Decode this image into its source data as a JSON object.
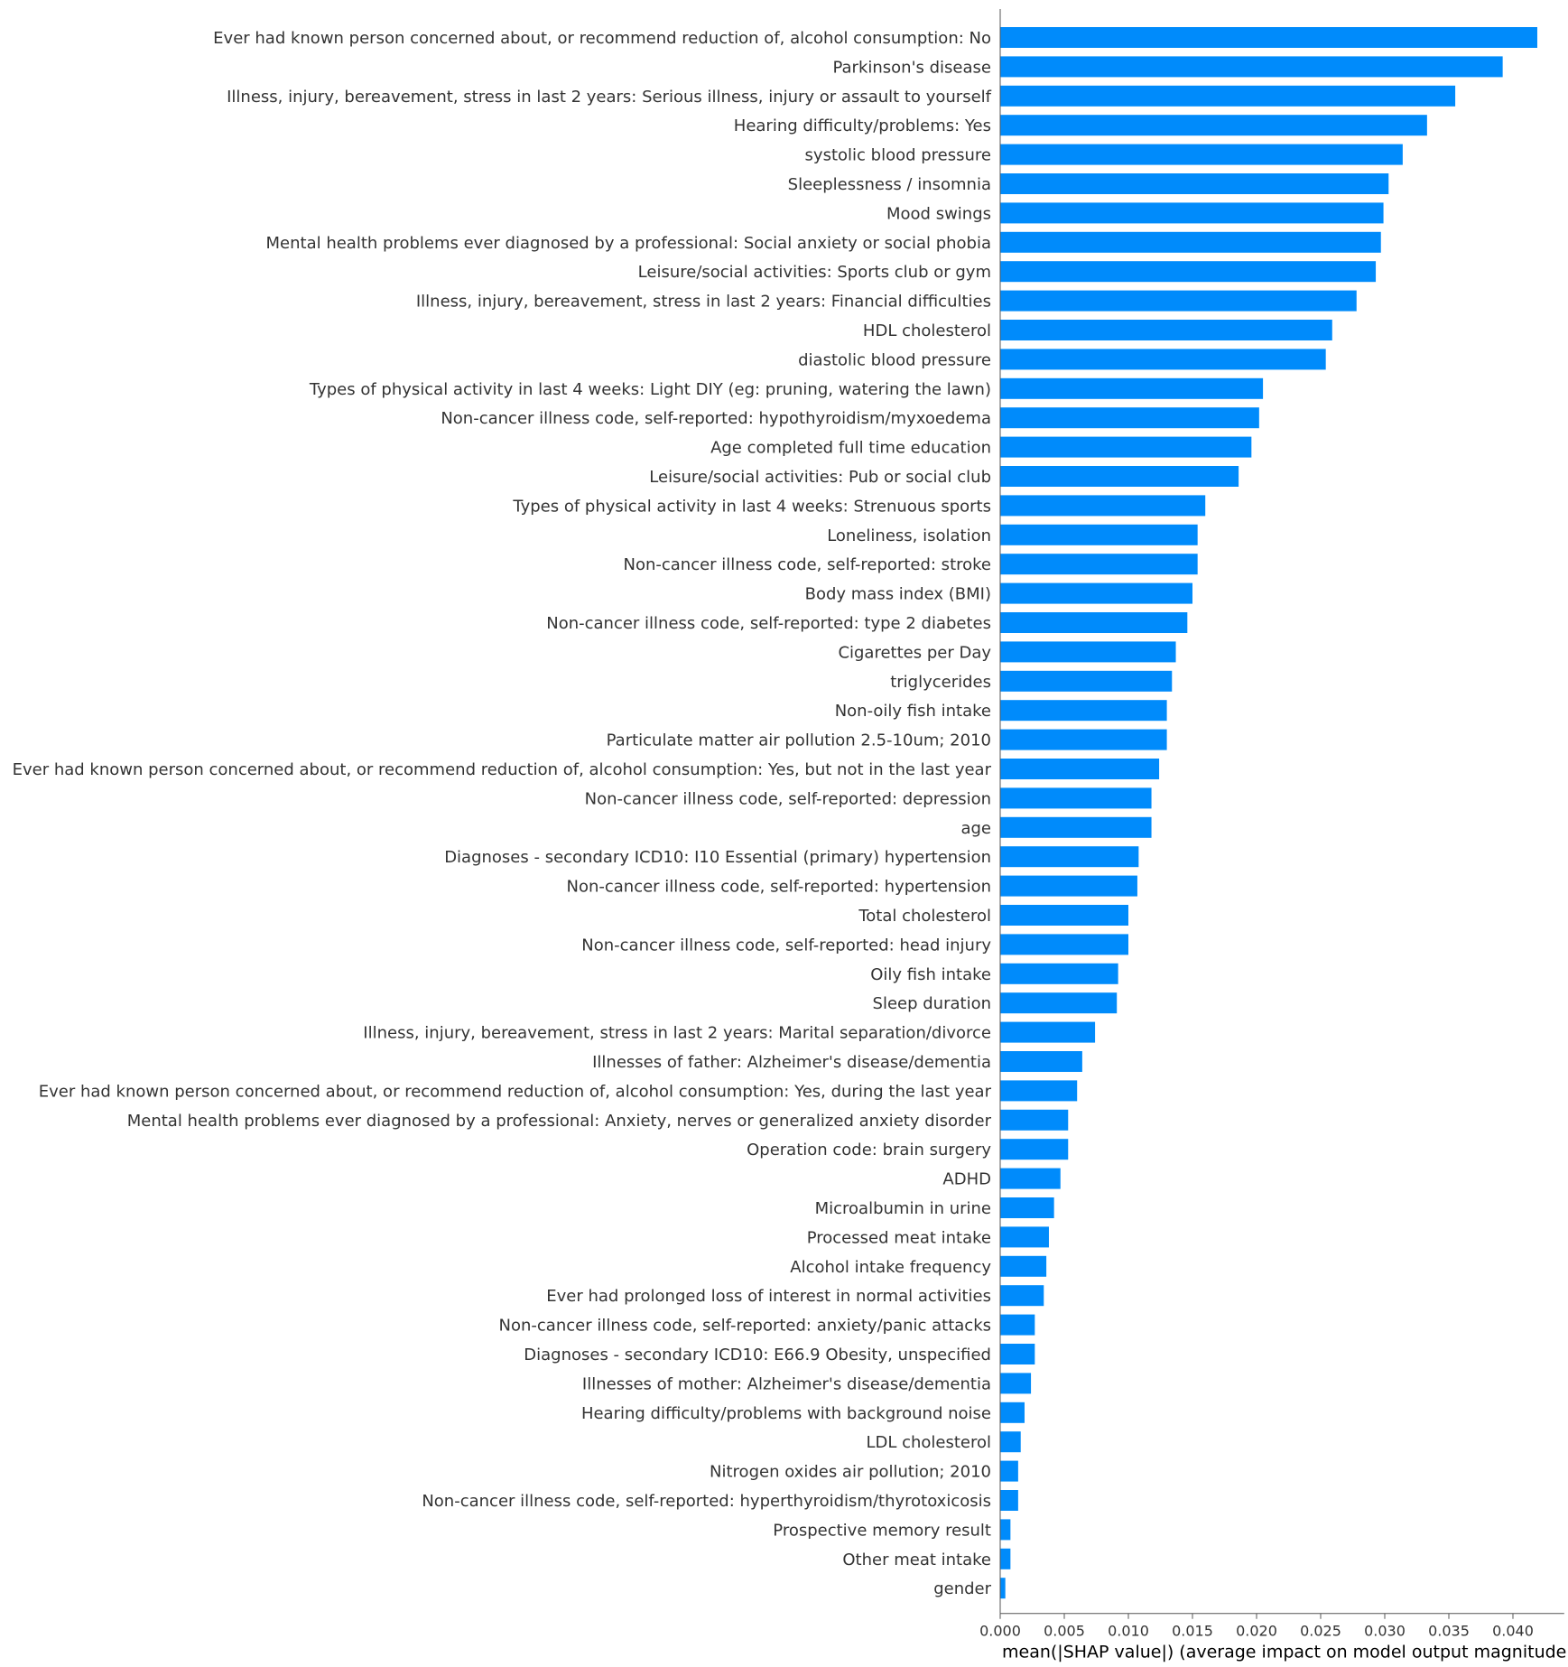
{
  "chart_data": {
    "type": "bar",
    "orientation": "horizontal",
    "xlabel": "mean(|SHAP value|) (average impact on model output magnitude)",
    "xlim": [
      0.0,
      0.044
    ],
    "xticks": [
      "0.000",
      "0.005",
      "0.010",
      "0.015",
      "0.020",
      "0.025",
      "0.030",
      "0.035",
      "0.040"
    ],
    "bar_color": "#008bfb",
    "grid": false,
    "categories": [
      "Ever had known person concerned about, or recommend reduction of, alcohol consumption: No",
      "Parkinson's disease",
      "Illness, injury, bereavement, stress in last 2 years: Serious illness, injury or assault to yourself",
      "Hearing difficulty/problems: Yes",
      "systolic blood pressure",
      "Sleeplessness / insomnia",
      "Mood swings",
      "Mental health problems ever diagnosed by a professional: Social anxiety or social phobia",
      "Leisure/social activities: Sports club or gym",
      "Illness, injury, bereavement, stress in last 2 years: Financial difficulties",
      "HDL cholesterol",
      "diastolic blood pressure",
      "Types of physical activity in last 4 weeks: Light DIY (eg: pruning, watering the lawn)",
      "Non-cancer illness code, self-reported: hypothyroidism/myxoedema",
      "Age completed full time education",
      "Leisure/social activities: Pub or social club",
      "Types of physical activity in last 4 weeks: Strenuous sports",
      "Loneliness, isolation",
      "Non-cancer illness code, self-reported: stroke",
      "Body mass index (BMI)",
      "Non-cancer illness code, self-reported: type 2 diabetes",
      "Cigarettes per Day",
      "triglycerides",
      "Non-oily fish intake",
      "Particulate matter air pollution 2.5-10um; 2010",
      "Ever had known person concerned about, or recommend reduction of, alcohol consumption: Yes, but not in the last year",
      "Non-cancer illness code, self-reported: depression",
      "age",
      "Diagnoses - secondary ICD10: I10 Essential (primary) hypertension",
      "Non-cancer illness code, self-reported: hypertension",
      "Total cholesterol",
      "Non-cancer illness code, self-reported: head injury",
      "Oily fish intake",
      "Sleep duration",
      "Illness, injury, bereavement, stress in last 2 years: Marital separation/divorce",
      "Illnesses of father: Alzheimer's disease/dementia",
      "Ever had known person concerned about, or recommend reduction of, alcohol consumption: Yes, during the last year",
      "Mental health problems ever diagnosed by a professional: Anxiety, nerves or generalized anxiety disorder",
      "Operation code: brain surgery",
      "ADHD",
      "Microalbumin in urine",
      "Processed meat intake",
      "Alcohol intake frequency",
      "Ever had prolonged loss of interest in normal activities",
      "Non-cancer illness code, self-reported: anxiety/panic attacks",
      "Diagnoses - secondary ICD10: E66.9 Obesity, unspecified",
      "Illnesses of mother: Alzheimer's disease/dementia",
      "Hearing difficulty/problems with background noise",
      "LDL cholesterol",
      "Nitrogen oxides air pollution; 2010",
      "Non-cancer illness code, self-reported: hyperthyroidism/thyrotoxicosis",
      "Prospective memory result",
      "Other meat intake",
      "gender"
    ],
    "values": [
      0.0419,
      0.0392,
      0.0355,
      0.0333,
      0.0314,
      0.0303,
      0.0299,
      0.0297,
      0.0293,
      0.0278,
      0.0259,
      0.0254,
      0.0205,
      0.0202,
      0.0196,
      0.0186,
      0.016,
      0.0154,
      0.0154,
      0.015,
      0.0146,
      0.0137,
      0.0134,
      0.013,
      0.013,
      0.0124,
      0.0118,
      0.0118,
      0.0108,
      0.0107,
      0.01,
      0.01,
      0.0092,
      0.0091,
      0.0074,
      0.0064,
      0.006,
      0.0053,
      0.0053,
      0.0047,
      0.0042,
      0.0038,
      0.0036,
      0.0034,
      0.0027,
      0.0027,
      0.0024,
      0.0019,
      0.0016,
      0.0014,
      0.0014,
      0.0008,
      0.0008,
      0.0004
    ]
  }
}
